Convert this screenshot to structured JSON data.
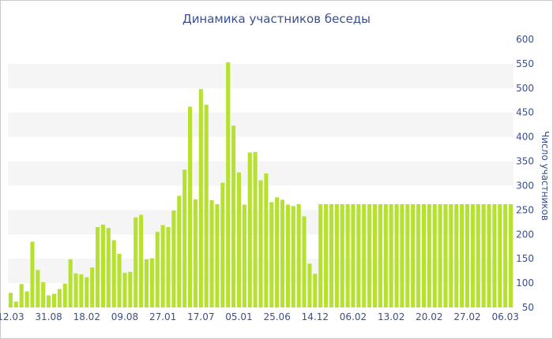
{
  "chart_data": {
    "type": "bar",
    "title": "Динамика участников беседы",
    "xlabel": "",
    "ylabel": "Число участников",
    "ylim": [
      50,
      600
    ],
    "yticks": [
      50,
      100,
      150,
      200,
      250,
      300,
      350,
      400,
      450,
      500,
      550,
      600
    ],
    "grid": "alternating horizontal bands",
    "bar_color": "#b7e12f",
    "band_color": "#f5f5f5",
    "text_color": "#3b4f8a",
    "x_tick_labels": [
      {
        "label": "12.03",
        "index": 0
      },
      {
        "label": "31.08",
        "index": 7
      },
      {
        "label": "18.02",
        "index": 14
      },
      {
        "label": "09.08",
        "index": 21
      },
      {
        "label": "27.01",
        "index": 28
      },
      {
        "label": "17.07",
        "index": 35
      },
      {
        "label": "05.01",
        "index": 42
      },
      {
        "label": "25.06",
        "index": 49
      },
      {
        "label": "14.12",
        "index": 56
      },
      {
        "label": "06.02",
        "index": 63
      },
      {
        "label": "13.02",
        "index": 70
      },
      {
        "label": "20.02",
        "index": 77
      },
      {
        "label": "27.02",
        "index": 84
      },
      {
        "label": "06.03",
        "index": 91
      }
    ],
    "values": [
      80,
      62,
      98,
      83,
      185,
      127,
      102,
      75,
      78,
      88,
      99,
      149,
      120,
      118,
      112,
      132,
      215,
      220,
      213,
      188,
      160,
      121,
      123,
      235,
      240,
      149,
      151,
      205,
      219,
      215,
      249,
      279,
      333,
      462,
      272,
      498,
      466,
      270,
      262,
      306,
      553,
      423,
      327,
      261,
      368,
      369,
      311,
      325,
      266,
      276,
      271,
      261,
      258,
      262,
      237,
      140,
      119,
      262,
      262,
      262,
      262,
      262,
      262,
      262,
      262,
      262,
      262,
      262,
      262,
      262,
      262,
      262,
      262,
      262,
      262,
      262,
      262,
      262,
      262,
      262,
      262,
      262,
      262,
      262,
      262,
      262,
      262,
      262,
      262,
      262,
      262,
      262,
      262
    ]
  }
}
